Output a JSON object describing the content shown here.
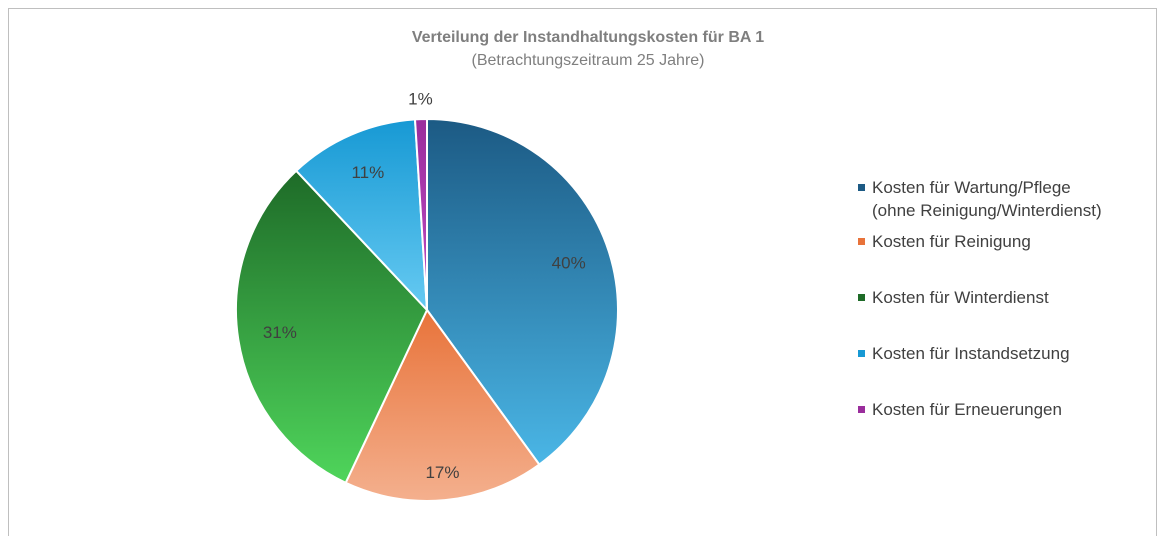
{
  "chart_data": {
    "type": "pie",
    "title": "Verteilung der Instandhaltungskosten für BA 1",
    "subtitle": "(Betrachtungszeitraum 25 Jahre)",
    "categories": [
      "Kosten für Wartung/Pflege\n(ohne Reinigung/Winterdienst)",
      "Kosten für Reinigung",
      "Kosten für Winterdienst",
      "Kosten für Instandsetzung",
      "Kosten für Erneuerungen"
    ],
    "values": [
      40,
      17,
      31,
      11,
      1
    ],
    "value_labels": [
      "40%",
      "17%",
      "31%",
      "11%",
      "1%"
    ],
    "colors": [
      [
        "#1c5a84",
        "#4ab6e6"
      ],
      [
        "#e8733a",
        "#f4b08e"
      ],
      [
        "#1e6b28",
        "#4fd55b"
      ],
      [
        "#1799d4",
        "#66caf2"
      ],
      [
        "#9a2d9c",
        "#c04cc4"
      ]
    ],
    "legend": "right"
  }
}
